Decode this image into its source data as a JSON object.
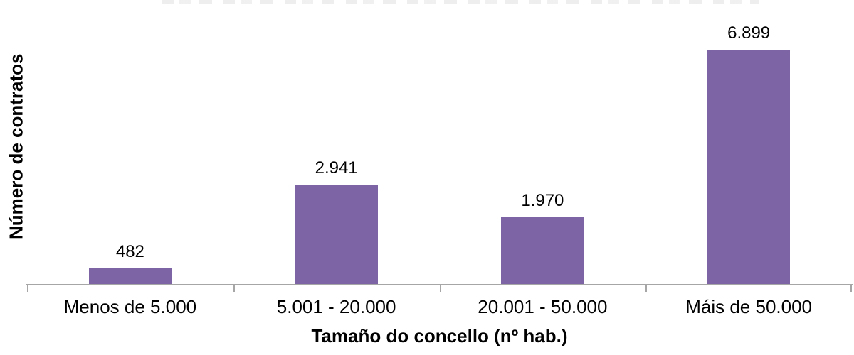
{
  "chart_data": {
    "type": "bar",
    "categories": [
      "Menos de 5.000",
      "5.001 - 20.000",
      "20.001 - 50.000",
      "Máis de 50.000"
    ],
    "values": [
      482,
      2941,
      1970,
      6899
    ],
    "value_labels": [
      "482",
      "2.941",
      "1.970",
      "6.899"
    ],
    "title": "",
    "xlabel": "Tamaño do concello (nº hab.)",
    "ylabel": "Número de contratos",
    "ylim": [
      0,
      8350
    ],
    "grid": false,
    "legend": false,
    "bar_color": "#7D64A5",
    "axis_line_color": "#A6A6A6",
    "text_color": "#000000"
  }
}
